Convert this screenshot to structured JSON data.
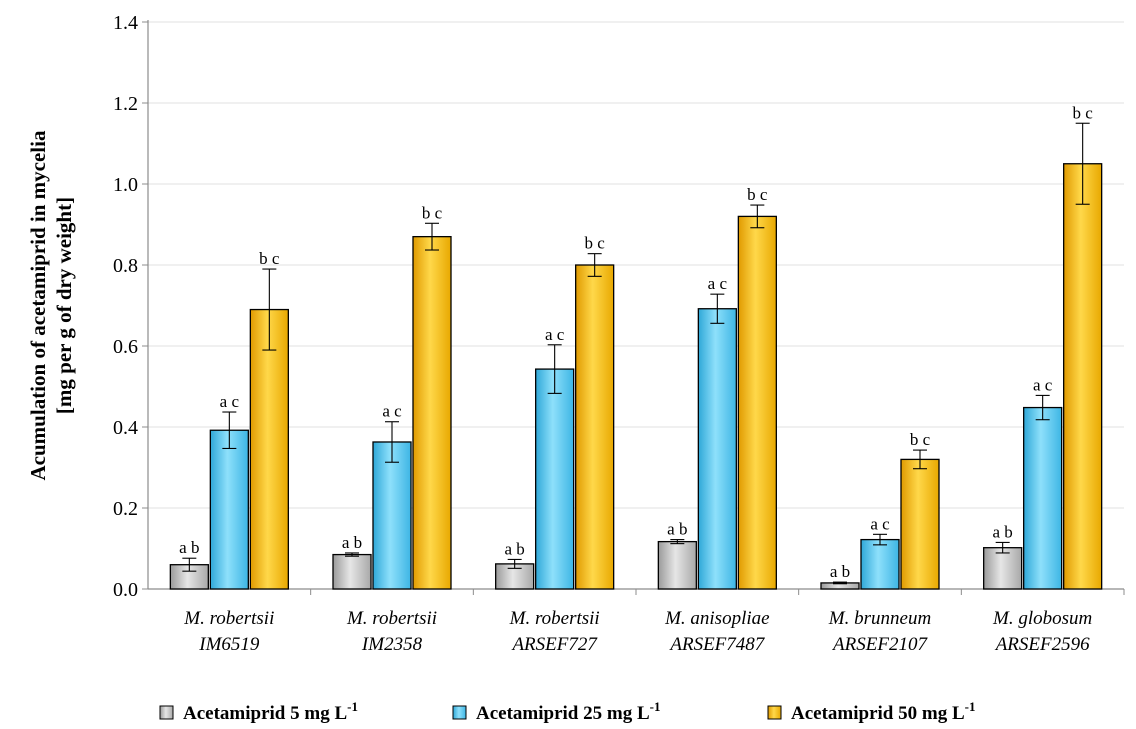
{
  "chart_data": {
    "type": "bar",
    "title": "",
    "ylabel_lines": [
      "Acumulation of acetamiprid in mycelia",
      "[mg per g of dry weight]"
    ],
    "xlabel": "",
    "ylim": [
      0,
      1.4
    ],
    "yticks": [
      "0.0",
      "0.2",
      "0.4",
      "0.6",
      "0.8",
      "1.0",
      "1.2",
      "1.4"
    ],
    "grid": "horizontal",
    "legend_position": "bottom",
    "categories": [
      {
        "line1": "M. robertsii",
        "line2": "IM6519"
      },
      {
        "line1": "M. robertsii",
        "line2": "IM2358"
      },
      {
        "line1": "M. robertsii",
        "line2": "ARSEF727"
      },
      {
        "line1": "M. anisopliae",
        "line2": "ARSEF7487"
      },
      {
        "line1": "M. brunneum",
        "line2": "ARSEF2107"
      },
      {
        "line1": "M. globosum",
        "line2": "ARSEF2596"
      }
    ],
    "series": [
      {
        "name_prefix": "Acetamiprid 5 mg L",
        "name_sup": "-1",
        "color": "#c8c8c8",
        "values": [
          0.06,
          0.085,
          0.062,
          0.117,
          0.015,
          0.102
        ],
        "errors": [
          0.016,
          0.004,
          0.011,
          0.005,
          0.002,
          0.013
        ],
        "labels": [
          "a b",
          "a b",
          "a b",
          "a b",
          "a b",
          "a b"
        ]
      },
      {
        "name_prefix": "Acetamiprid 25 mg L",
        "name_sup": "-1",
        "color": "#55c8f0",
        "values": [
          0.392,
          0.363,
          0.543,
          0.692,
          0.122,
          0.448
        ],
        "errors": [
          0.045,
          0.05,
          0.06,
          0.036,
          0.013,
          0.03
        ],
        "labels": [
          "a c",
          "a c",
          "a c",
          "a c",
          "a c",
          "a c"
        ]
      },
      {
        "name_prefix": "Acetamiprid 50 mg L",
        "name_sup": "-1",
        "color": "#f8c000",
        "values": [
          0.69,
          0.87,
          0.8,
          0.92,
          0.32,
          1.05
        ],
        "errors": [
          0.1,
          0.033,
          0.028,
          0.028,
          0.023,
          0.1
        ],
        "labels": [
          "b c",
          "b c",
          "b c",
          "b c",
          "b c",
          "b c"
        ]
      }
    ]
  }
}
